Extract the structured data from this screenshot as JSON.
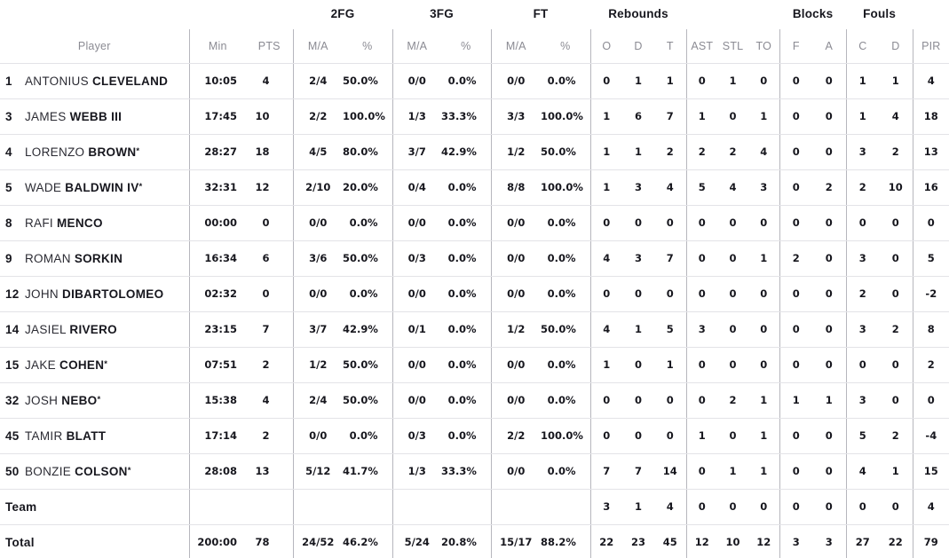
{
  "table": {
    "group_headers": {
      "fg2": "2FG",
      "fg3": "3FG",
      "ft": "FT",
      "rebounds": "Rebounds",
      "blocks": "Blocks",
      "fouls": "Fouls"
    },
    "columns": [
      "Player",
      "Min",
      "PTS",
      "M/A",
      "%",
      "M/A",
      "%",
      "M/A",
      "%",
      "O",
      "D",
      "T",
      "AST",
      "STL",
      "TO",
      "F",
      "A",
      "C",
      "D",
      "PIR"
    ],
    "starter_mark": "*",
    "colors": {
      "text_dark": "#17171e",
      "text_gray": "#8b8b93",
      "line_vertical": "#b6b6bd",
      "line_horizontal": "#e3e3e7"
    },
    "rows": [
      {
        "num": "1",
        "first": "ANTONIUS",
        "last": "CLEVELAND",
        "star": false,
        "cells": [
          "10:05",
          "4",
          "2/4",
          "50.0%",
          "0/0",
          "0.0%",
          "0/0",
          "0.0%",
          "0",
          "1",
          "1",
          "0",
          "1",
          "0",
          "0",
          "0",
          "1",
          "1",
          "4"
        ]
      },
      {
        "num": "3",
        "first": "JAMES",
        "last": "WEBB III",
        "star": false,
        "cells": [
          "17:45",
          "10",
          "2/2",
          "100.0%",
          "1/3",
          "33.3%",
          "3/3",
          "100.0%",
          "1",
          "6",
          "7",
          "1",
          "0",
          "1",
          "0",
          "0",
          "1",
          "4",
          "18"
        ]
      },
      {
        "num": "4",
        "first": "LORENZO",
        "last": "BROWN",
        "star": true,
        "cells": [
          "28:27",
          "18",
          "4/5",
          "80.0%",
          "3/7",
          "42.9%",
          "1/2",
          "50.0%",
          "1",
          "1",
          "2",
          "2",
          "2",
          "4",
          "0",
          "0",
          "3",
          "2",
          "13"
        ]
      },
      {
        "num": "5",
        "first": "WADE",
        "last": "BALDWIN IV",
        "star": true,
        "cells": [
          "32:31",
          "12",
          "2/10",
          "20.0%",
          "0/4",
          "0.0%",
          "8/8",
          "100.0%",
          "1",
          "3",
          "4",
          "5",
          "4",
          "3",
          "0",
          "2",
          "2",
          "10",
          "16"
        ]
      },
      {
        "num": "8",
        "first": "RAFI",
        "last": "MENCO",
        "star": false,
        "cells": [
          "00:00",
          "0",
          "0/0",
          "0.0%",
          "0/0",
          "0.0%",
          "0/0",
          "0.0%",
          "0",
          "0",
          "0",
          "0",
          "0",
          "0",
          "0",
          "0",
          "0",
          "0",
          "0"
        ]
      },
      {
        "num": "9",
        "first": "ROMAN",
        "last": "SORKIN",
        "star": false,
        "cells": [
          "16:34",
          "6",
          "3/6",
          "50.0%",
          "0/3",
          "0.0%",
          "0/0",
          "0.0%",
          "4",
          "3",
          "7",
          "0",
          "0",
          "1",
          "2",
          "0",
          "3",
          "0",
          "5"
        ]
      },
      {
        "num": "12",
        "first": "JOHN",
        "last": "DIBARTOLOMEO",
        "star": false,
        "cells": [
          "02:32",
          "0",
          "0/0",
          "0.0%",
          "0/0",
          "0.0%",
          "0/0",
          "0.0%",
          "0",
          "0",
          "0",
          "0",
          "0",
          "0",
          "0",
          "0",
          "2",
          "0",
          "-2"
        ]
      },
      {
        "num": "14",
        "first": "JASIEL",
        "last": "RIVERO",
        "star": false,
        "cells": [
          "23:15",
          "7",
          "3/7",
          "42.9%",
          "0/1",
          "0.0%",
          "1/2",
          "50.0%",
          "4",
          "1",
          "5",
          "3",
          "0",
          "0",
          "0",
          "0",
          "3",
          "2",
          "8"
        ]
      },
      {
        "num": "15",
        "first": "JAKE",
        "last": "COHEN",
        "star": true,
        "cells": [
          "07:51",
          "2",
          "1/2",
          "50.0%",
          "0/0",
          "0.0%",
          "0/0",
          "0.0%",
          "1",
          "0",
          "1",
          "0",
          "0",
          "0",
          "0",
          "0",
          "0",
          "0",
          "2"
        ]
      },
      {
        "num": "32",
        "first": "JOSH",
        "last": "NEBO",
        "star": true,
        "cells": [
          "15:38",
          "4",
          "2/4",
          "50.0%",
          "0/0",
          "0.0%",
          "0/0",
          "0.0%",
          "0",
          "0",
          "0",
          "0",
          "2",
          "1",
          "1",
          "1",
          "3",
          "0",
          "0"
        ]
      },
      {
        "num": "45",
        "first": "TAMIR",
        "last": "BLATT",
        "star": false,
        "cells": [
          "17:14",
          "2",
          "0/0",
          "0.0%",
          "0/3",
          "0.0%",
          "2/2",
          "100.0%",
          "0",
          "0",
          "0",
          "1",
          "0",
          "1",
          "0",
          "0",
          "5",
          "2",
          "-4"
        ]
      },
      {
        "num": "50",
        "first": "BONZIE",
        "last": "COLSON",
        "star": true,
        "cells": [
          "28:08",
          "13",
          "5/12",
          "41.7%",
          "1/3",
          "33.3%",
          "0/0",
          "0.0%",
          "7",
          "7",
          "14",
          "0",
          "1",
          "1",
          "0",
          "0",
          "4",
          "1",
          "15"
        ]
      }
    ],
    "summary_rows": [
      {
        "label": "Team",
        "cells": [
          "",
          "",
          "",
          "",
          "",
          "",
          "",
          "",
          "3",
          "1",
          "4",
          "0",
          "0",
          "0",
          "0",
          "0",
          "0",
          "0",
          "4"
        ]
      },
      {
        "label": "Total",
        "cells": [
          "200:00",
          "78",
          "24/52",
          "46.2%",
          "5/24",
          "20.8%",
          "15/17",
          "88.2%",
          "22",
          "23",
          "45",
          "12",
          "10",
          "12",
          "3",
          "3",
          "27",
          "22",
          "79"
        ]
      }
    ]
  }
}
